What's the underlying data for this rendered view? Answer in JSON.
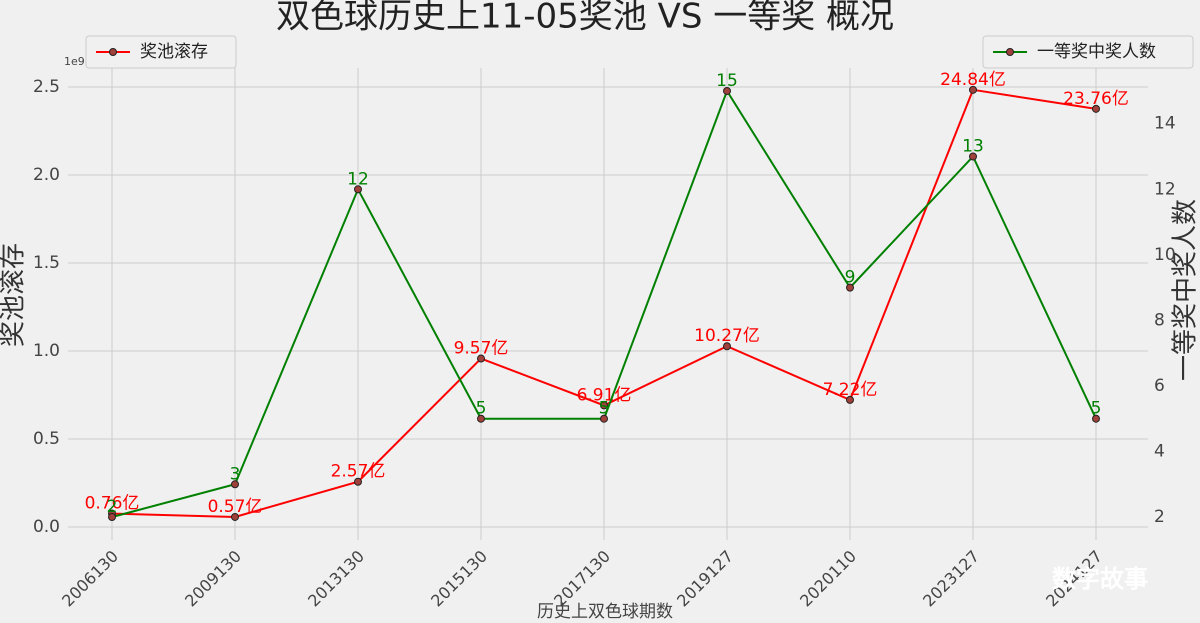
{
  "chart_data": {
    "type": "line",
    "title": "双色球历史上11-05奖池 VS 一等奖 概况",
    "x_label": "历史上双色球期数",
    "y_label": "奖池滚存",
    "y2_label": "一等奖中奖人数",
    "y_offset_label": "1e9",
    "watermark": "数字故事",
    "categories": [
      "2006130",
      "2009130",
      "2013130",
      "2015130",
      "2017130",
      "2019127",
      "2020110",
      "2023127",
      "2024127"
    ],
    "series": [
      {
        "name": "奖池滚存",
        "color": "#ff0000",
        "axis": "y",
        "legend": "upper left",
        "values": [
          76000000,
          57000000,
          257000000,
          957000000,
          691000000,
          1027000000,
          722000000,
          2484000000,
          2376000000
        ],
        "value_labels": [
          "0.76亿",
          "0.57亿",
          "2.57亿",
          "9.57亿",
          "6.91亿",
          "10.27亿",
          "7.22亿",
          "24.84亿",
          "23.76亿"
        ]
      },
      {
        "name": "一等奖中奖人数",
        "color": "#008000",
        "axis": "y2",
        "legend": "upper right",
        "values": [
          2,
          3,
          12,
          5,
          5,
          15,
          9,
          13,
          5
        ]
      }
    ],
    "ylim": [
      -74000000,
      2608000000
    ],
    "yticks": [
      {
        "value": 0,
        "label": "0.0"
      },
      {
        "value": 500000000,
        "label": "0.5"
      },
      {
        "value": 1000000000,
        "label": "1.0"
      },
      {
        "value": 1500000000,
        "label": "1.5"
      },
      {
        "value": 2000000000,
        "label": "2.0"
      },
      {
        "value": 2500000000,
        "label": "2.5"
      }
    ],
    "y2lim": [
      1.3,
      15.7
    ],
    "y2ticks": [
      2,
      4,
      6,
      8,
      10,
      12,
      14
    ],
    "grid": true
  }
}
